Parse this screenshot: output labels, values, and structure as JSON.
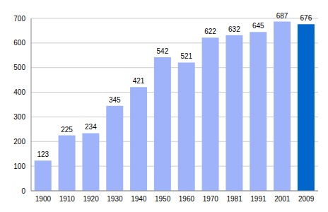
{
  "chart_data": {
    "type": "bar",
    "categories": [
      "1900",
      "1910",
      "1920",
      "1930",
      "1940",
      "1950",
      "1960",
      "1970",
      "1981",
      "1991",
      "2001",
      "2009"
    ],
    "values": [
      123,
      225,
      234,
      345,
      421,
      542,
      521,
      622,
      632,
      645,
      687,
      676
    ],
    "colors": [
      "#9fb3fb",
      "#9fb3fb",
      "#9fb3fb",
      "#9fb3fb",
      "#9fb3fb",
      "#9fb3fb",
      "#9fb3fb",
      "#9fb3fb",
      "#9fb3fb",
      "#9fb3fb",
      "#9fb3fb",
      "#0066cc"
    ],
    "ylim": [
      0,
      700
    ],
    "yticks": [
      0,
      100,
      200,
      300,
      400,
      500,
      600,
      700
    ],
    "grid": true,
    "data_labels": true
  }
}
